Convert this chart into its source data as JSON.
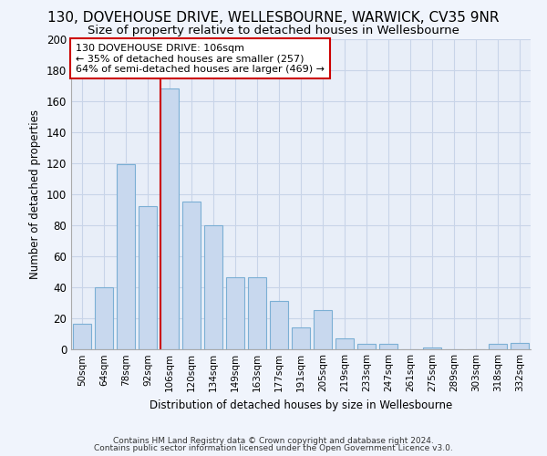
{
  "title": "130, DOVEHOUSE DRIVE, WELLESBOURNE, WARWICK, CV35 9NR",
  "subtitle": "Size of property relative to detached houses in Wellesbourne",
  "xlabel": "Distribution of detached houses by size in Wellesbourne",
  "ylabel": "Number of detached properties",
  "bar_labels": [
    "50sqm",
    "64sqm",
    "78sqm",
    "92sqm",
    "106sqm",
    "120sqm",
    "134sqm",
    "149sqm",
    "163sqm",
    "177sqm",
    "191sqm",
    "205sqm",
    "219sqm",
    "233sqm",
    "247sqm",
    "261sqm",
    "275sqm",
    "289sqm",
    "303sqm",
    "318sqm",
    "332sqm"
  ],
  "bar_values": [
    16,
    40,
    119,
    92,
    168,
    95,
    80,
    46,
    46,
    31,
    14,
    25,
    7,
    3,
    3,
    0,
    1,
    0,
    0,
    3,
    4
  ],
  "bar_color": "#c8d8ee",
  "bar_edge_color": "#7bafd4",
  "red_line_index": 4,
  "red_line_color": "#cc0000",
  "annotation_line1": "130 DOVEHOUSE DRIVE: 106sqm",
  "annotation_line2": "← 35% of detached houses are smaller (257)",
  "annotation_line3": "64% of semi-detached houses are larger (469) →",
  "annotation_box_color": "#ffffff",
  "annotation_box_edge_color": "#cc0000",
  "ylim": [
    0,
    200
  ],
  "yticks": [
    0,
    20,
    40,
    60,
    80,
    100,
    120,
    140,
    160,
    180,
    200
  ],
  "grid_color": "#c8d4e8",
  "bg_color": "#e8eef8",
  "fig_bg_color": "#f0f4fc",
  "footer1": "Contains HM Land Registry data © Crown copyright and database right 2024.",
  "footer2": "Contains public sector information licensed under the Open Government Licence v3.0.",
  "title_fontsize": 11,
  "subtitle_fontsize": 9.5
}
